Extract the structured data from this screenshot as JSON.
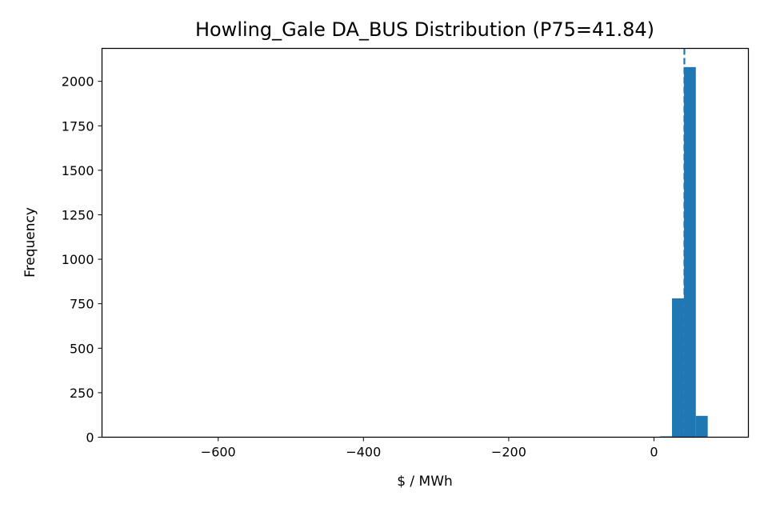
{
  "chart_data": {
    "type": "bar",
    "subtype": "histogram",
    "title": "Howling_Gale DA_BUS Distribution (P75=41.84)",
    "xlabel": "$ / MWh",
    "ylabel": "Frequency",
    "xlim": [
      -760,
      130
    ],
    "ylim": [
      0,
      2185
    ],
    "x_ticks": [
      {
        "value": -600,
        "label": "−600"
      },
      {
        "value": -400,
        "label": "−400"
      },
      {
        "value": -200,
        "label": "−200"
      },
      {
        "value": 0,
        "label": "0"
      }
    ],
    "y_ticks": [
      {
        "value": 0,
        "label": "0"
      },
      {
        "value": 250,
        "label": "250"
      },
      {
        "value": 500,
        "label": "500"
      },
      {
        "value": 750,
        "label": "750"
      },
      {
        "value": 1000,
        "label": "1000"
      },
      {
        "value": 1250,
        "label": "1250"
      },
      {
        "value": 1500,
        "label": "1500"
      },
      {
        "value": 1750,
        "label": "1750"
      },
      {
        "value": 2000,
        "label": "2000"
      }
    ],
    "bins": [
      {
        "start": 8.4,
        "end": 24.8,
        "count": 5
      },
      {
        "start": 24.8,
        "end": 41.2,
        "count": 780
      },
      {
        "start": 41.2,
        "end": 57.6,
        "count": 2080
      },
      {
        "start": 57.6,
        "end": 74.0,
        "count": 120
      }
    ],
    "reference_line": {
      "x": 41.84,
      "style": "dashed"
    },
    "bar_color": "#1f77b4",
    "grid": false,
    "legend": "none"
  }
}
